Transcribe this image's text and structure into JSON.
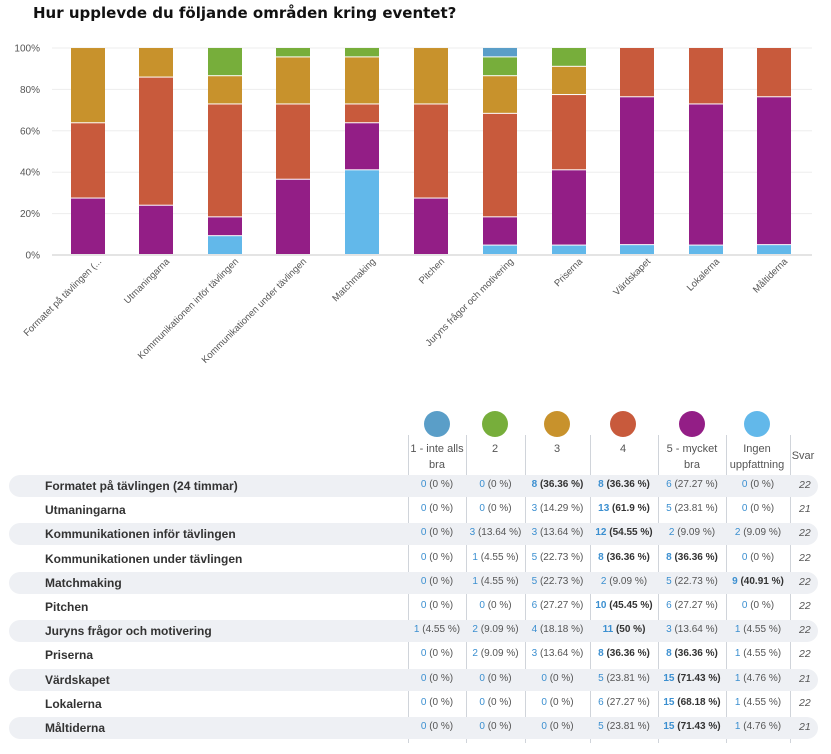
{
  "title": "Hur upplevde du följande områden kring eventet?",
  "colors": {
    "c1": "#5a9ec8",
    "c2": "#77ae3b",
    "c3": "#c8922c",
    "c4": "#c85a3c",
    "c5": "#931e86",
    "c6": "#62b8ea"
  },
  "chart_data": {
    "type": "bar",
    "stacked": true,
    "percent": true,
    "y_ticks": [
      "0%",
      "20%",
      "40%",
      "60%",
      "80%",
      "100%"
    ],
    "ylim": [
      0,
      100
    ],
    "categories": [
      "Formatet på tävlingen (...",
      "Utmaningarna",
      "Kommunikationen inför tävlingen",
      "Kommunikationen under tävlingen",
      "Matchmaking",
      "Pitchen",
      "Juryns frågor och motivering",
      "Priserna",
      "Värdskapet",
      "Lokalerna",
      "Måltiderna"
    ],
    "series": [
      {
        "name": "Ingen uppfattning",
        "color_key": "c6",
        "values": [
          0,
          0,
          9.09,
          0,
          40.91,
          0,
          4.55,
          4.55,
          4.76,
          4.55,
          4.76
        ]
      },
      {
        "name": "5 - mycket bra",
        "color_key": "c5",
        "values": [
          27.27,
          23.81,
          9.09,
          36.36,
          22.73,
          27.27,
          13.64,
          36.36,
          71.43,
          68.18,
          71.43
        ]
      },
      {
        "name": "4",
        "color_key": "c4",
        "values": [
          36.36,
          61.9,
          54.55,
          36.36,
          9.09,
          45.45,
          50,
          36.36,
          23.81,
          27.27,
          23.81
        ]
      },
      {
        "name": "3",
        "color_key": "c3",
        "values": [
          36.36,
          14.29,
          13.64,
          22.73,
          22.73,
          27.27,
          18.18,
          13.64,
          0,
          0,
          0
        ]
      },
      {
        "name": "2",
        "color_key": "c2",
        "values": [
          0,
          0,
          13.64,
          4.55,
          4.55,
          0,
          9.09,
          9.09,
          0,
          0,
          0
        ]
      },
      {
        "name": "1 - inte alls bra",
        "color_key": "c1",
        "values": [
          0,
          0,
          0,
          0,
          0,
          0,
          4.55,
          0,
          0,
          0,
          0
        ]
      }
    ]
  },
  "table": {
    "legend": [
      {
        "line1": "1 - inte alls",
        "line2": "bra",
        "color_key": "c1"
      },
      {
        "line1": "2",
        "line2": "",
        "color_key": "c2"
      },
      {
        "line1": "3",
        "line2": "",
        "color_key": "c3"
      },
      {
        "line1": "4",
        "line2": "",
        "color_key": "c4"
      },
      {
        "line1": "5 - mycket",
        "line2": "bra",
        "color_key": "c5"
      },
      {
        "line1": "Ingen",
        "line2": "uppfattning",
        "color_key": "c6"
      }
    ],
    "svar_header": "Svar",
    "rows": [
      {
        "label": "Formatet på tävlingen (24 timmar)",
        "svar": "22",
        "cells": [
          {
            "n": "0",
            "p": "(0 %)",
            "hi": false
          },
          {
            "n": "0",
            "p": "(0 %)",
            "hi": false
          },
          {
            "n": "8",
            "p": "(36.36 %)",
            "hi": true
          },
          {
            "n": "8",
            "p": "(36.36 %)",
            "hi": true
          },
          {
            "n": "6",
            "p": "(27.27 %)",
            "hi": false
          },
          {
            "n": "0",
            "p": "(0 %)",
            "hi": false
          }
        ]
      },
      {
        "label": "Utmaningarna",
        "svar": "21",
        "cells": [
          {
            "n": "0",
            "p": "(0 %)",
            "hi": false
          },
          {
            "n": "0",
            "p": "(0 %)",
            "hi": false
          },
          {
            "n": "3",
            "p": "(14.29 %)",
            "hi": false
          },
          {
            "n": "13",
            "p": "(61.9 %)",
            "hi": true
          },
          {
            "n": "5",
            "p": "(23.81 %)",
            "hi": false
          },
          {
            "n": "0",
            "p": "(0 %)",
            "hi": false
          }
        ]
      },
      {
        "label": "Kommunikationen inför tävlingen",
        "svar": "22",
        "cells": [
          {
            "n": "0",
            "p": "(0 %)",
            "hi": false
          },
          {
            "n": "3",
            "p": "(13.64 %)",
            "hi": false
          },
          {
            "n": "3",
            "p": "(13.64 %)",
            "hi": false
          },
          {
            "n": "12",
            "p": "(54.55 %)",
            "hi": true
          },
          {
            "n": "2",
            "p": "(9.09 %)",
            "hi": false
          },
          {
            "n": "2",
            "p": "(9.09 %)",
            "hi": false
          }
        ]
      },
      {
        "label": "Kommunikationen under tävlingen",
        "svar": "22",
        "cells": [
          {
            "n": "0",
            "p": "(0 %)",
            "hi": false
          },
          {
            "n": "1",
            "p": "(4.55 %)",
            "hi": false
          },
          {
            "n": "5",
            "p": "(22.73 %)",
            "hi": false
          },
          {
            "n": "8",
            "p": "(36.36 %)",
            "hi": true
          },
          {
            "n": "8",
            "p": "(36.36 %)",
            "hi": true
          },
          {
            "n": "0",
            "p": "(0 %)",
            "hi": false
          }
        ]
      },
      {
        "label": "Matchmaking",
        "svar": "22",
        "cells": [
          {
            "n": "0",
            "p": "(0 %)",
            "hi": false
          },
          {
            "n": "1",
            "p": "(4.55 %)",
            "hi": false
          },
          {
            "n": "5",
            "p": "(22.73 %)",
            "hi": false
          },
          {
            "n": "2",
            "p": "(9.09 %)",
            "hi": false
          },
          {
            "n": "5",
            "p": "(22.73 %)",
            "hi": false
          },
          {
            "n": "9",
            "p": "(40.91 %)",
            "hi": true
          }
        ]
      },
      {
        "label": "Pitchen",
        "svar": "22",
        "cells": [
          {
            "n": "0",
            "p": "(0 %)",
            "hi": false
          },
          {
            "n": "0",
            "p": "(0 %)",
            "hi": false
          },
          {
            "n": "6",
            "p": "(27.27 %)",
            "hi": false
          },
          {
            "n": "10",
            "p": "(45.45 %)",
            "hi": true
          },
          {
            "n": "6",
            "p": "(27.27 %)",
            "hi": false
          },
          {
            "n": "0",
            "p": "(0 %)",
            "hi": false
          }
        ]
      },
      {
        "label": "Juryns frågor och motivering",
        "svar": "22",
        "cells": [
          {
            "n": "1",
            "p": "(4.55 %)",
            "hi": false
          },
          {
            "n": "2",
            "p": "(9.09 %)",
            "hi": false
          },
          {
            "n": "4",
            "p": "(18.18 %)",
            "hi": false
          },
          {
            "n": "11",
            "p": "(50 %)",
            "hi": true
          },
          {
            "n": "3",
            "p": "(13.64 %)",
            "hi": false
          },
          {
            "n": "1",
            "p": "(4.55 %)",
            "hi": false
          }
        ]
      },
      {
        "label": "Priserna",
        "svar": "22",
        "cells": [
          {
            "n": "0",
            "p": "(0 %)",
            "hi": false
          },
          {
            "n": "2",
            "p": "(9.09 %)",
            "hi": false
          },
          {
            "n": "3",
            "p": "(13.64 %)",
            "hi": false
          },
          {
            "n": "8",
            "p": "(36.36 %)",
            "hi": true
          },
          {
            "n": "8",
            "p": "(36.36 %)",
            "hi": true
          },
          {
            "n": "1",
            "p": "(4.55 %)",
            "hi": false
          }
        ]
      },
      {
        "label": "Värdskapet",
        "svar": "21",
        "cells": [
          {
            "n": "0",
            "p": "(0 %)",
            "hi": false
          },
          {
            "n": "0",
            "p": "(0 %)",
            "hi": false
          },
          {
            "n": "0",
            "p": "(0 %)",
            "hi": false
          },
          {
            "n": "5",
            "p": "(23.81 %)",
            "hi": false
          },
          {
            "n": "15",
            "p": "(71.43 %)",
            "hi": true
          },
          {
            "n": "1",
            "p": "(4.76 %)",
            "hi": false
          }
        ]
      },
      {
        "label": "Lokalerna",
        "svar": "22",
        "cells": [
          {
            "n": "0",
            "p": "(0 %)",
            "hi": false
          },
          {
            "n": "0",
            "p": "(0 %)",
            "hi": false
          },
          {
            "n": "0",
            "p": "(0 %)",
            "hi": false
          },
          {
            "n": "6",
            "p": "(27.27 %)",
            "hi": false
          },
          {
            "n": "15",
            "p": "(68.18 %)",
            "hi": true
          },
          {
            "n": "1",
            "p": "(4.55 %)",
            "hi": false
          }
        ]
      },
      {
        "label": "Måltiderna",
        "svar": "21",
        "cells": [
          {
            "n": "0",
            "p": "(0 %)",
            "hi": false
          },
          {
            "n": "0",
            "p": "(0 %)",
            "hi": false
          },
          {
            "n": "0",
            "p": "(0 %)",
            "hi": false
          },
          {
            "n": "5",
            "p": "(23.81 %)",
            "hi": false
          },
          {
            "n": "15",
            "p": "(71.43 %)",
            "hi": true
          },
          {
            "n": "1",
            "p": "(4.76 %)",
            "hi": false
          }
        ]
      }
    ]
  }
}
